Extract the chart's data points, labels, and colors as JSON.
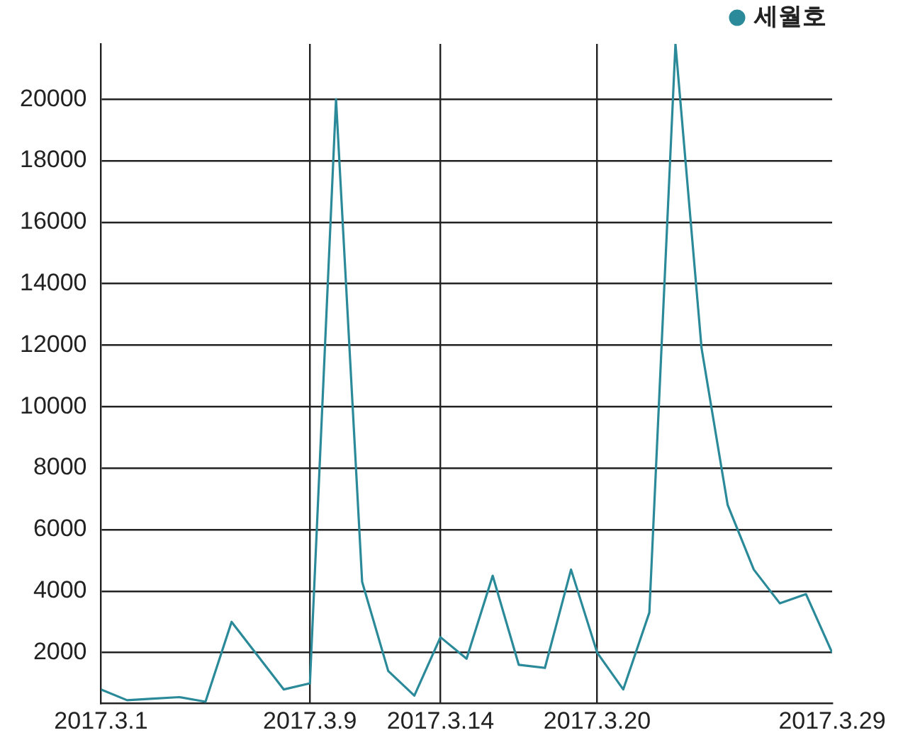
{
  "chart_data": {
    "type": "line",
    "x": [
      "2017-03-01",
      "2017-03-02",
      "2017-03-03",
      "2017-03-04",
      "2017-03-05",
      "2017-03-06",
      "2017-03-07",
      "2017-03-08",
      "2017-03-09",
      "2017-03-10",
      "2017-03-11",
      "2017-03-12",
      "2017-03-13",
      "2017-03-14",
      "2017-03-15",
      "2017-03-16",
      "2017-03-17",
      "2017-03-18",
      "2017-03-19",
      "2017-03-20",
      "2017-03-21",
      "2017-03-22",
      "2017-03-23",
      "2017-03-24",
      "2017-03-25",
      "2017-03-26",
      "2017-03-27",
      "2017-03-28",
      "2017-03-29"
    ],
    "series": [
      {
        "name": "세월호",
        "color": "#2b8a99",
        "values": [
          800,
          450,
          500,
          550,
          400,
          3000,
          1900,
          800,
          1000,
          20000,
          4300,
          1400,
          600,
          2500,
          1800,
          4500,
          1600,
          1500,
          4700,
          2000,
          800,
          3300,
          21800,
          11900,
          6800,
          4700,
          3600,
          3900,
          2000
        ]
      }
    ],
    "xlim": [
      "2017-03-01",
      "2017-03-29"
    ],
    "xticks": [
      {
        "value": "2017-03-01",
        "label": "2017.3.1"
      },
      {
        "value": "2017-03-09",
        "label": "2017.3.9"
      },
      {
        "value": "2017-03-14",
        "label": "2017.3.14"
      },
      {
        "value": "2017-03-20",
        "label": "2017.3.20"
      },
      {
        "value": "2017-03-29",
        "label": "2017.3.29"
      }
    ],
    "ylim": [
      350,
      21800
    ],
    "yticks": [
      2000,
      4000,
      6000,
      8000,
      10000,
      12000,
      14000,
      16000,
      18000,
      20000
    ],
    "grid": true,
    "legend": "top right",
    "marker": "none",
    "line_style": "solid"
  }
}
